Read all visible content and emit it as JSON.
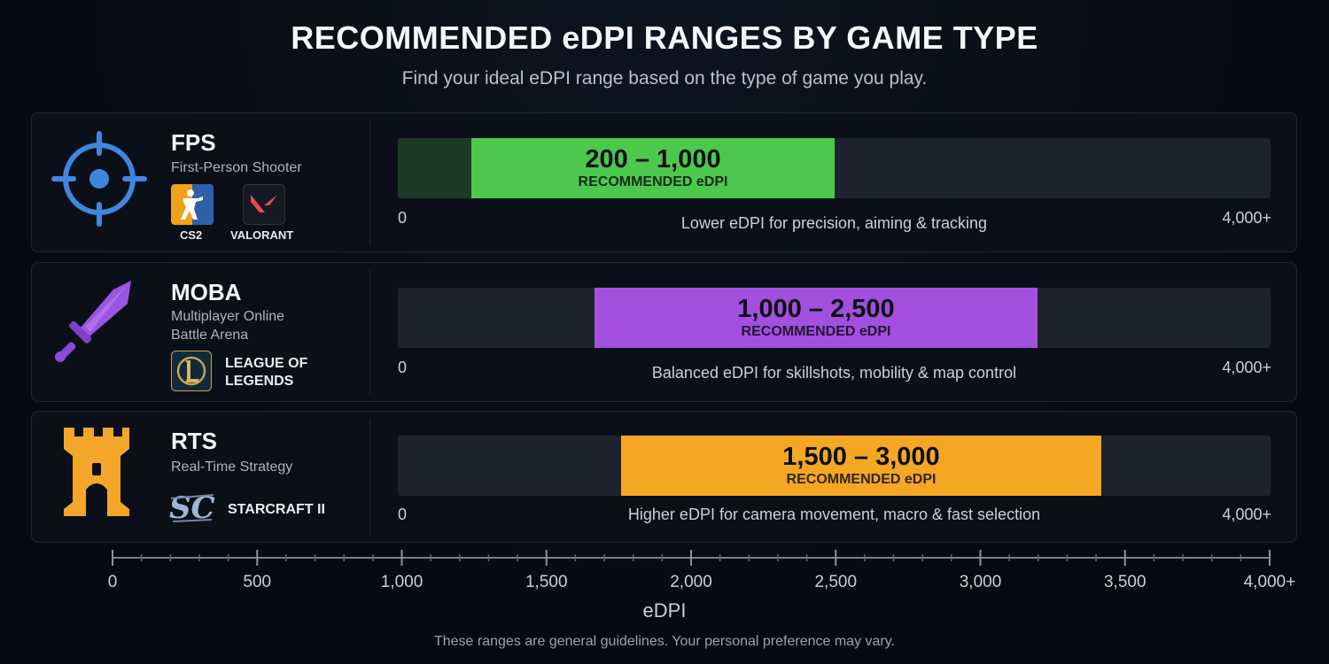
{
  "header": {
    "title": "RECOMMENDED eDPI RANGES BY GAME TYPE",
    "subtitle": "Find your ideal eDPI range based on the type of game you play."
  },
  "rows": [
    {
      "name": "FPS",
      "description": "First-Person Shooter",
      "games": [
        "CS2",
        "VALORANT"
      ],
      "range_label": "200 – 1,000",
      "badge": "RECOMMENDED eDPI",
      "note": "Lower eDPI for precision, aiming & tracking",
      "min_label": "0",
      "max_label": "4,000+",
      "color": "#4cc94c",
      "icon": "crosshair-icon"
    },
    {
      "name": "MOBA",
      "description": "Multiplayer Online Battle Arena",
      "games": [
        "LEAGUE OF LEGENDS"
      ],
      "range_label": "1,000 – 2,500",
      "badge": "RECOMMENDED eDPI",
      "note": "Balanced eDPI for skillshots, mobility & map control",
      "min_label": "0",
      "max_label": "4,000+",
      "color": "#a24fe0",
      "icon": "sword-icon"
    },
    {
      "name": "RTS",
      "description": "Real-Time Strategy",
      "games": [
        "STARCRAFT II"
      ],
      "range_label": "1,500 – 3,000",
      "badge": "RECOMMENDED eDPI",
      "note": "Higher eDPI for camera movement, macro & fast selection",
      "min_label": "0",
      "max_label": "4,000+",
      "color": "#f5a623",
      "icon": "castle-tower-icon"
    }
  ],
  "chart_data": {
    "type": "bar",
    "orientation": "horizontal-range",
    "categories": [
      "FPS",
      "MOBA",
      "RTS"
    ],
    "ranges": [
      [
        200,
        1000
      ],
      [
        1000,
        2500
      ],
      [
        1500,
        3000
      ]
    ],
    "xlim": [
      0,
      4000
    ],
    "xticks": [
      0,
      500,
      1000,
      1500,
      2000,
      2500,
      3000,
      3500,
      4000
    ],
    "xtick_labels": [
      "0",
      "500",
      "1,000",
      "1,500",
      "2,000",
      "2,500",
      "3,000",
      "3,500",
      "4,000+"
    ],
    "xlabel": "eDPI",
    "colors": [
      "#4cc94c",
      "#a24fe0",
      "#f5a623"
    ]
  },
  "footnote": "These ranges are general guidelines. Your personal preference may vary."
}
